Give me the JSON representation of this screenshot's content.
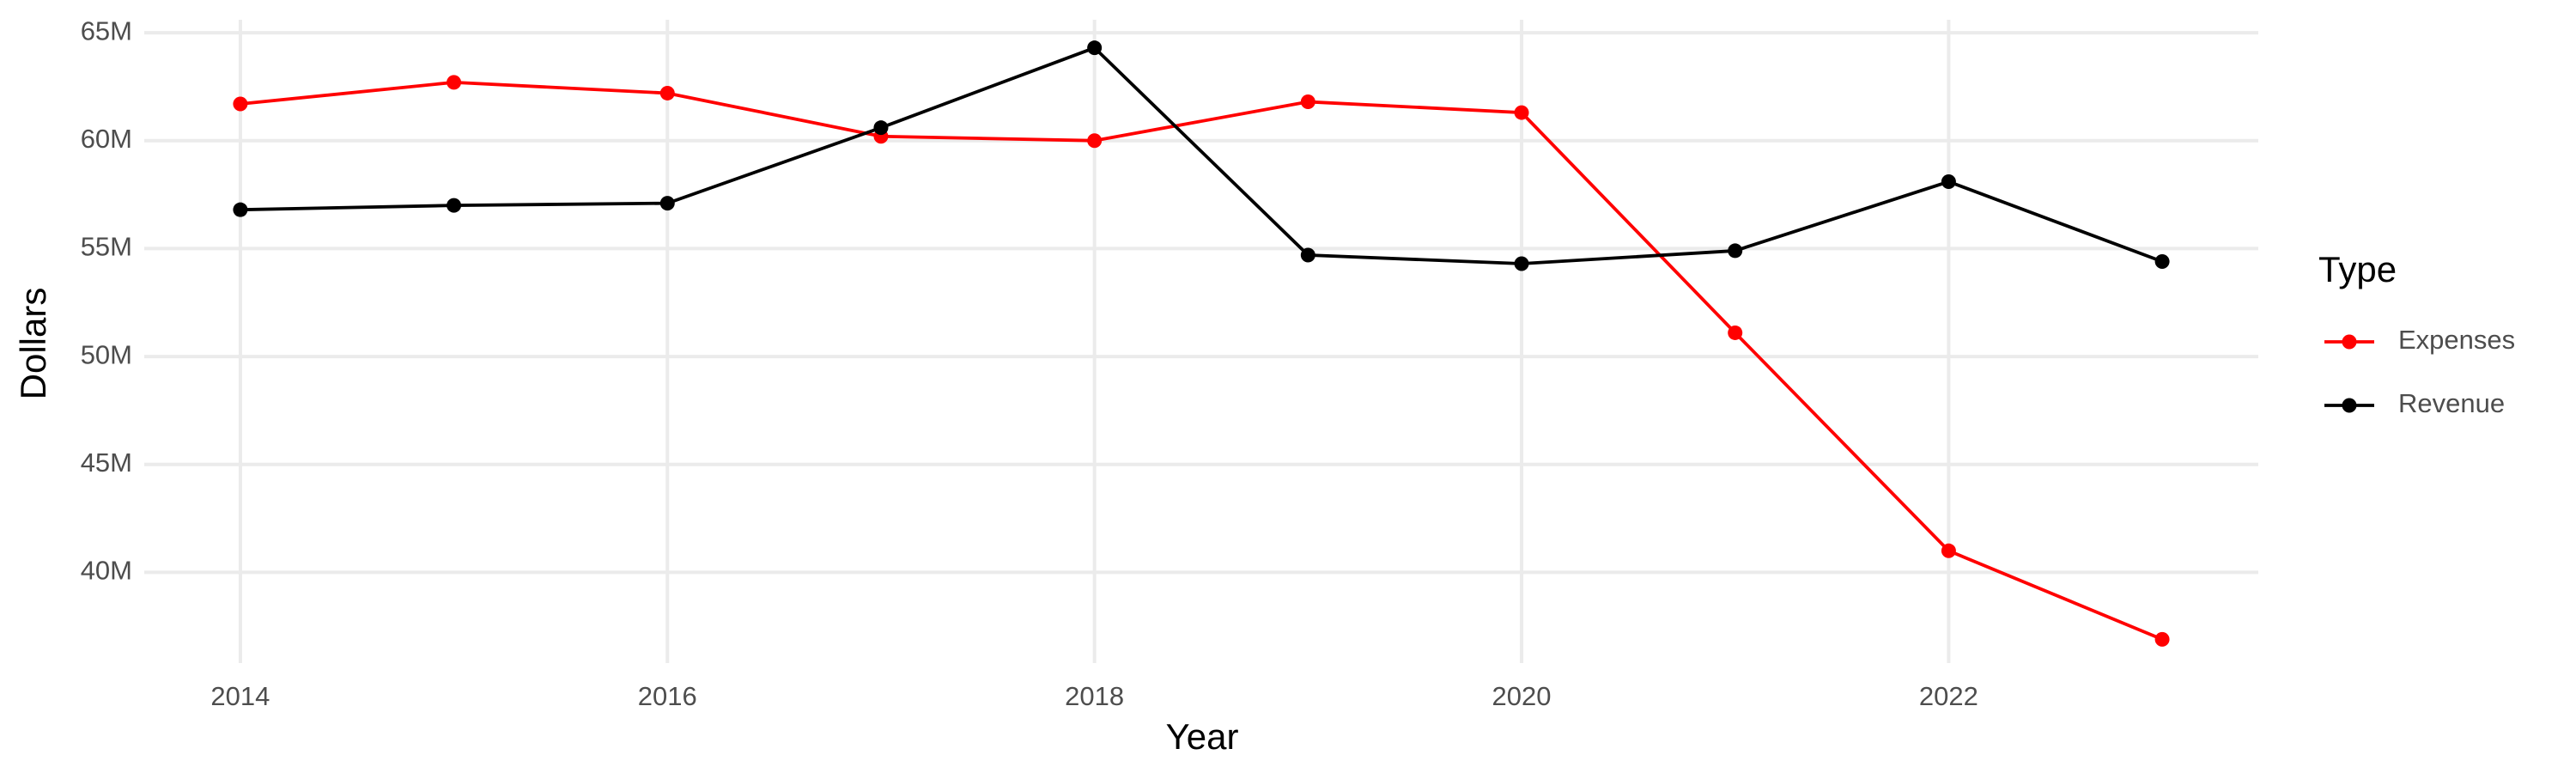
{
  "chart_data": {
    "type": "line",
    "x_label": "Year",
    "y_label": "Dollars",
    "legend_title": "Type",
    "x": [
      2014,
      2015,
      2016,
      2017,
      2018,
      2019,
      2020,
      2021,
      2022,
      2023
    ],
    "series": [
      {
        "name": "Expenses",
        "color": "#ff0000",
        "values": [
          61700000,
          62700000,
          62200000,
          60200000,
          60000000,
          61800000,
          61300000,
          51100000,
          41000000,
          36900000
        ]
      },
      {
        "name": "Revenue",
        "color": "#000000",
        "values": [
          56800000,
          57000000,
          57100000,
          60600000,
          64300000,
          54700000,
          54300000,
          54900000,
          58100000,
          54400000
        ]
      }
    ],
    "xlim": [
      2013.55,
      2023.45
    ],
    "xticks": [
      2014,
      2016,
      2018,
      2020,
      2022
    ],
    "ylim": [
      35800000,
      65600000
    ],
    "yticks": [
      {
        "value": 40000000,
        "label": "40M"
      },
      {
        "value": 45000000,
        "label": "45M"
      },
      {
        "value": 50000000,
        "label": "50M"
      },
      {
        "value": 55000000,
        "label": "55M"
      },
      {
        "value": 60000000,
        "label": "60M"
      },
      {
        "value": 65000000,
        "label": "65M"
      }
    ],
    "grid": true,
    "legend": "right"
  }
}
